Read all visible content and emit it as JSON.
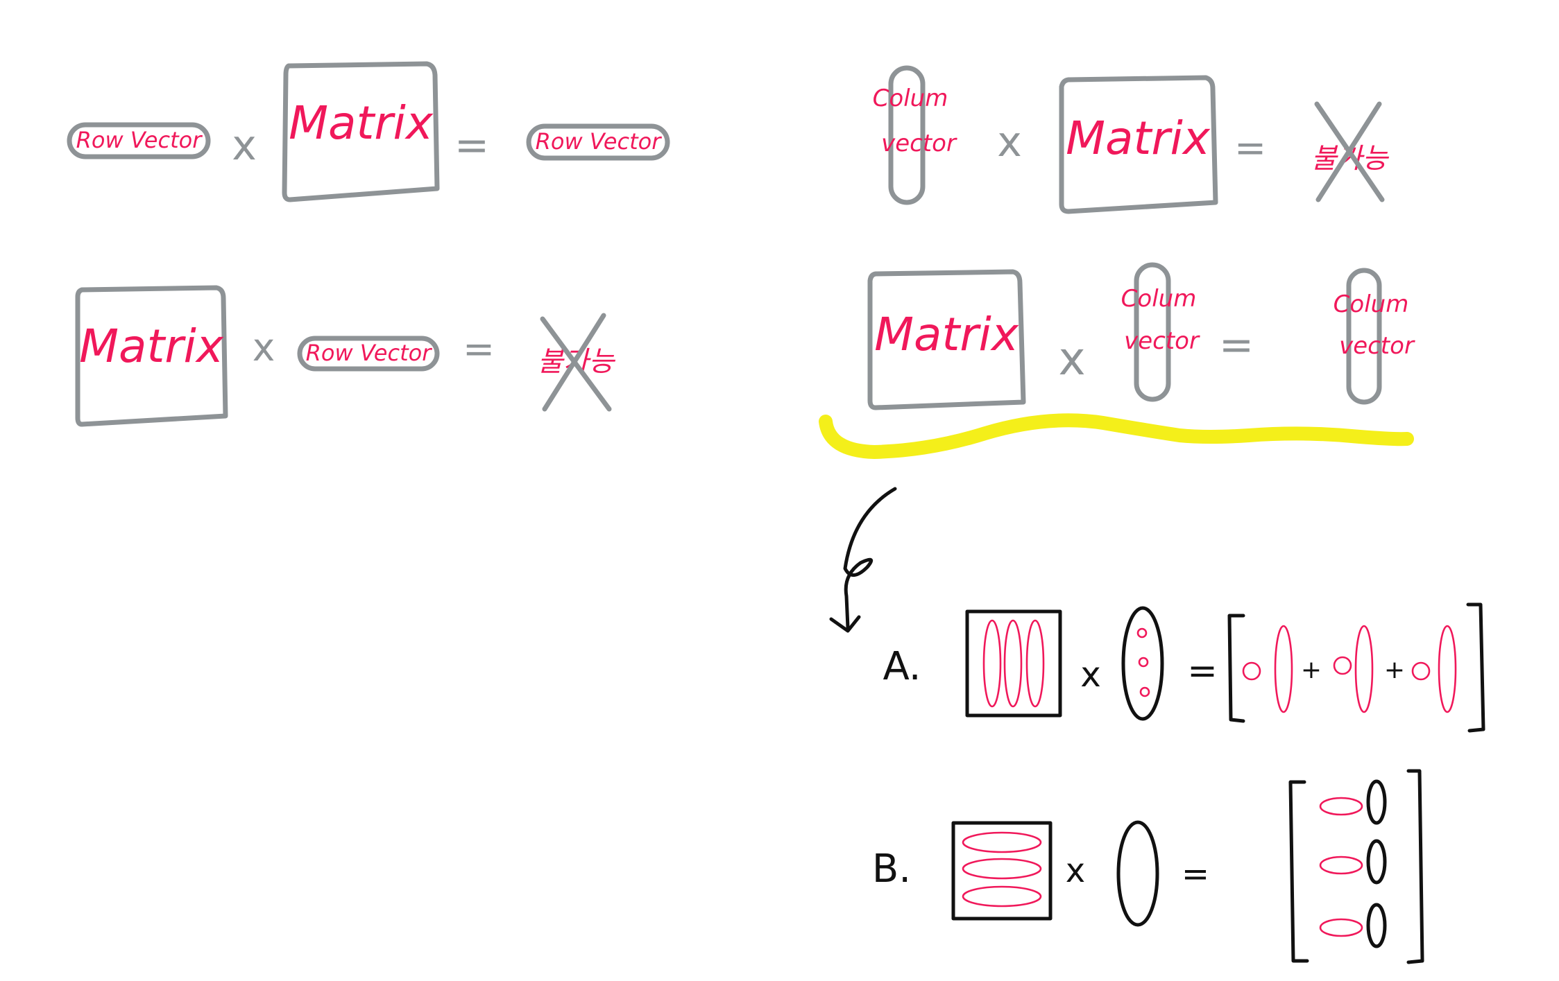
{
  "colors": {
    "ink_gray": "#8e9396",
    "ink_pink": "#f0185a",
    "ink_black": "#111111",
    "highlight_yellow": "#f4ef1a",
    "background": "#ffffff"
  },
  "labels": {
    "matrix": "Matrix",
    "row_vector": "Row Vector",
    "colum": "Colum",
    "vector": "vector",
    "times": "x",
    "equals": "=",
    "impossible": "불가능"
  },
  "section_a": {
    "label": "A.",
    "times": "x",
    "equals": "=",
    "plus": "+"
  },
  "section_b": {
    "label": "B.",
    "times": "x",
    "equals": "="
  },
  "icons": {
    "arrow": "curved-down-arrow-icon",
    "cross": "cross-out-icon",
    "highlight": "yellow-wavy-underline"
  }
}
